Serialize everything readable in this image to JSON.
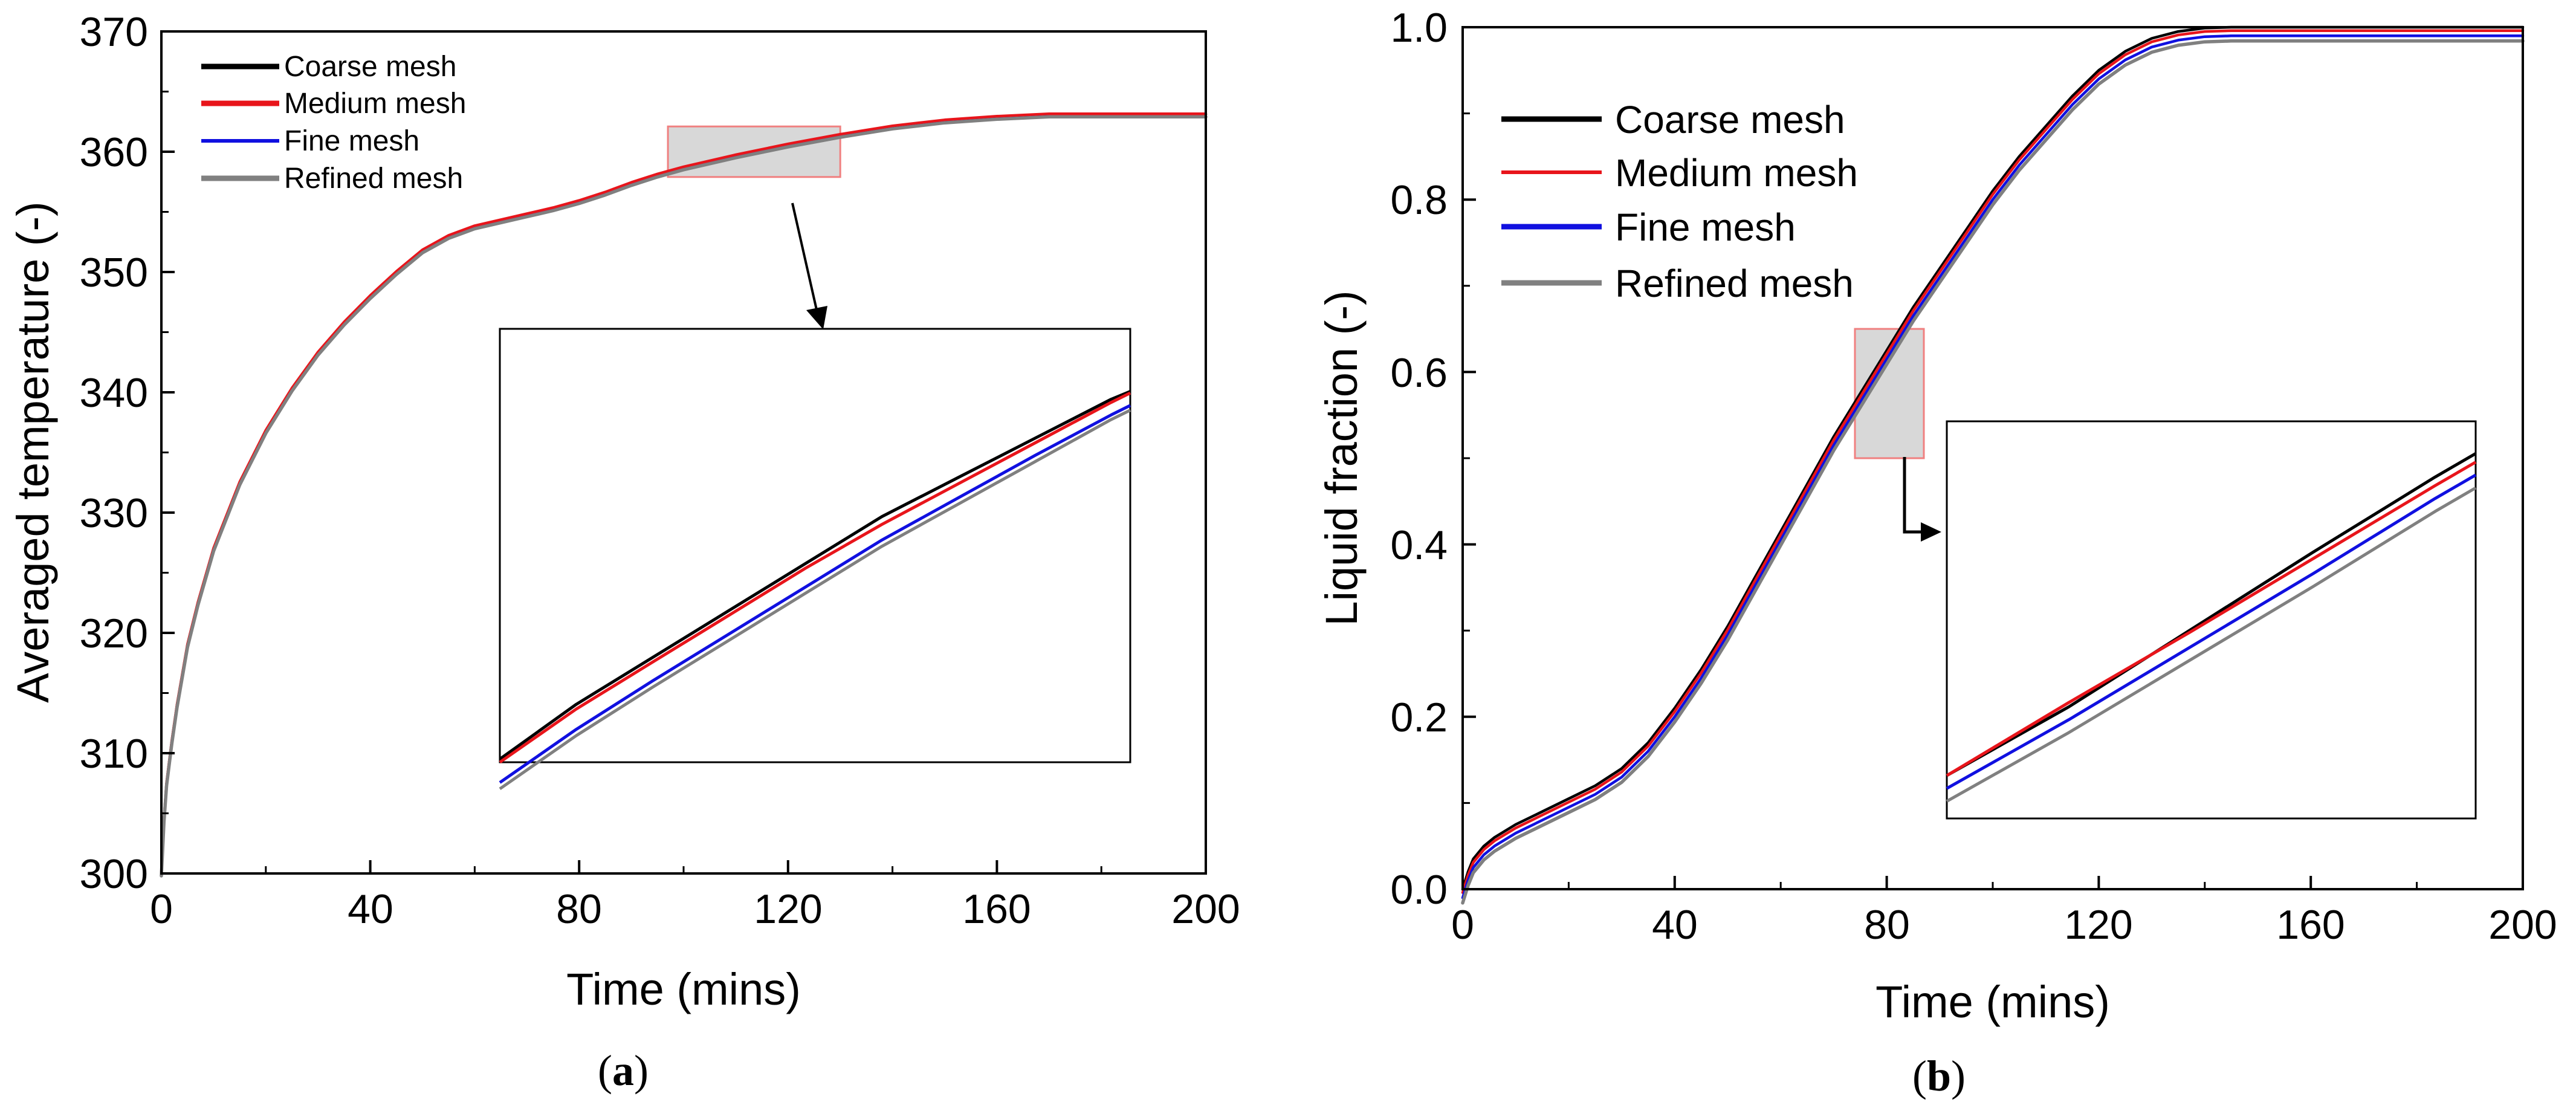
{
  "colors": {
    "coarse": "#000000",
    "medium": "#e8151b",
    "fine": "#1010e0",
    "refined": "#808080",
    "zoom_fill": "#d8d8d8",
    "zoom_border": "#f08080"
  },
  "chart_data": [
    {
      "type": "line",
      "panel_label": "a",
      "caption_open": "(",
      "caption_close": ")",
      "title": "",
      "xlabel": "Time (mins)",
      "ylabel": "Averaged temperature (-)",
      "xlim": [
        0,
        200
      ],
      "ylim": [
        300,
        370
      ],
      "xticks": [
        0,
        40,
        80,
        120,
        160,
        200
      ],
      "xtick_labels": [
        "0",
        "40",
        "80",
        "120",
        "160",
        "200"
      ],
      "yticks": [
        300,
        310,
        320,
        330,
        340,
        350,
        360,
        370
      ],
      "ytick_labels": [
        "300",
        "310",
        "320",
        "330",
        "340",
        "350",
        "360",
        "370"
      ],
      "grid": false,
      "legend_position": "top-left",
      "x": [
        0,
        0.5,
        1,
        2,
        3,
        5,
        7,
        10,
        15,
        20,
        25,
        30,
        35,
        40,
        45,
        50,
        55,
        60,
        65,
        70,
        75,
        80,
        85,
        90,
        95,
        100,
        110,
        120,
        130,
        140,
        150,
        160,
        170,
        180,
        190,
        200
      ],
      "series": [
        {
          "name": "Coarse mesh",
          "color_key": "coarse",
          "offset": 0.0,
          "values": [
            300,
            304.5,
            307.5,
            311,
            314,
            319,
            322.5,
            327,
            332.5,
            336.8,
            340.3,
            343.3,
            345.8,
            348,
            350,
            351.8,
            353,
            353.8,
            354.3,
            354.8,
            355.3,
            355.9,
            356.6,
            357.4,
            358.1,
            358.7,
            359.7,
            360.6,
            361.4,
            362.1,
            362.6,
            362.9,
            363.1,
            363.1,
            363.1,
            363.1
          ]
        },
        {
          "name": "Medium mesh",
          "color_key": "medium",
          "offset": 0.05,
          "values": [
            300,
            304.5,
            307.5,
            311,
            314,
            319,
            322.5,
            327,
            332.5,
            336.8,
            340.3,
            343.3,
            345.8,
            348,
            350,
            351.8,
            353,
            353.8,
            354.3,
            354.8,
            355.3,
            355.9,
            356.6,
            357.4,
            358.1,
            358.7,
            359.7,
            360.6,
            361.4,
            362.1,
            362.6,
            362.9,
            363.1,
            363.1,
            363.1,
            363.1
          ]
        },
        {
          "name": "Fine mesh",
          "color_key": "fine",
          "offset": -0.15,
          "values": [
            300,
            304.5,
            307.5,
            311,
            314,
            319,
            322.5,
            327,
            332.5,
            336.8,
            340.3,
            343.3,
            345.8,
            348,
            350,
            351.8,
            353,
            353.8,
            354.3,
            354.8,
            355.3,
            355.9,
            356.6,
            357.4,
            358.1,
            358.7,
            359.7,
            360.6,
            361.4,
            362.1,
            362.6,
            362.9,
            363.1,
            363.1,
            363.1,
            363.1
          ]
        },
        {
          "name": "Refined mesh",
          "color_key": "refined",
          "offset": -0.2,
          "values": [
            300,
            304.5,
            307.5,
            311,
            314,
            319,
            322.5,
            327,
            332.5,
            336.8,
            340.3,
            343.3,
            345.8,
            348,
            350,
            351.8,
            353,
            353.8,
            354.3,
            354.8,
            355.3,
            355.9,
            356.6,
            357.4,
            358.1,
            358.7,
            359.7,
            360.6,
            361.4,
            362.1,
            362.6,
            362.9,
            363.1,
            363.1,
            363.1,
            363.1
          ]
        }
      ],
      "zoom_region": {
        "x_range": [
          97,
          130
        ],
        "y_range": [
          357.9,
          362.1
        ]
      },
      "inset": {
        "x_range": [
          97,
          130
        ],
        "y_range": [
          358.13,
          360.9
        ],
        "x": [
          97,
          101,
          105,
          109,
          113,
          117,
          121,
          125,
          129,
          130
        ],
        "series": [
          {
            "name": "Coarse mesh",
            "color_key": "coarse",
            "values": [
              358.15,
              358.5,
              358.8,
              359.1,
              359.4,
              359.7,
              359.95,
              360.2,
              360.45,
              360.5
            ]
          },
          {
            "name": "Medium mesh",
            "color_key": "medium",
            "values": [
              358.13,
              358.47,
              358.77,
              359.07,
              359.37,
              359.65,
              359.91,
              360.17,
              360.43,
              360.49
            ]
          },
          {
            "name": "Fine mesh",
            "color_key": "fine",
            "values": [
              358.0,
              358.34,
              358.65,
              358.95,
              359.25,
              359.55,
              359.82,
              360.09,
              360.35,
              360.41
            ]
          },
          {
            "name": "Refined mesh",
            "color_key": "refined",
            "values": [
              357.96,
              358.3,
              358.61,
              358.91,
              359.21,
              359.51,
              359.78,
              360.05,
              360.32,
              360.38
            ]
          }
        ]
      }
    },
    {
      "type": "line",
      "panel_label": "b",
      "caption_open": "(",
      "caption_close": ")",
      "title": "",
      "xlabel": "Time (mins)",
      "ylabel": "Liquid fraction (-)",
      "xlim": [
        0,
        200
      ],
      "ylim": [
        0,
        1.0
      ],
      "xticks": [
        0,
        40,
        80,
        120,
        160,
        200
      ],
      "xtick_labels": [
        "0",
        "40",
        "80",
        "120",
        "160",
        "200"
      ],
      "yticks": [
        0,
        0.2,
        0.4,
        0.6,
        0.8,
        1.0
      ],
      "ytick_labels": [
        "0.0",
        "0.2",
        "0.4",
        "0.6",
        "0.8",
        "1.0"
      ],
      "grid": false,
      "legend_position": "top-left",
      "x": [
        0,
        1,
        2,
        4,
        6,
        10,
        15,
        20,
        25,
        30,
        35,
        40,
        45,
        50,
        55,
        60,
        65,
        70,
        75,
        80,
        85,
        90,
        95,
        100,
        105,
        110,
        115,
        120,
        125,
        130,
        135,
        140,
        145,
        150,
        155,
        160,
        170,
        180,
        190,
        200
      ],
      "series": [
        {
          "name": "Coarse mesh",
          "color_key": "coarse",
          "offset": 0.0,
          "values": [
            0,
            0.02,
            0.035,
            0.05,
            0.06,
            0.075,
            0.09,
            0.105,
            0.12,
            0.14,
            0.17,
            0.21,
            0.255,
            0.305,
            0.36,
            0.415,
            0.47,
            0.525,
            0.575,
            0.625,
            0.675,
            0.72,
            0.765,
            0.81,
            0.85,
            0.885,
            0.92,
            0.95,
            0.972,
            0.987,
            0.995,
            0.999,
            1.0,
            1.0,
            1.0,
            1.0,
            1.0,
            1.0,
            1.0,
            1.0
          ]
        },
        {
          "name": "Medium mesh",
          "color_key": "medium",
          "offset": -0.004,
          "values": [
            0,
            0.02,
            0.035,
            0.05,
            0.06,
            0.075,
            0.09,
            0.105,
            0.12,
            0.14,
            0.17,
            0.21,
            0.255,
            0.305,
            0.36,
            0.415,
            0.47,
            0.525,
            0.575,
            0.625,
            0.675,
            0.72,
            0.765,
            0.81,
            0.85,
            0.885,
            0.92,
            0.95,
            0.972,
            0.987,
            0.995,
            0.999,
            1.0,
            1.0,
            1.0,
            1.0,
            1.0,
            1.0,
            1.0,
            1.0
          ]
        },
        {
          "name": "Fine mesh",
          "color_key": "fine",
          "offset": -0.01,
          "values": [
            0,
            0.02,
            0.035,
            0.05,
            0.06,
            0.075,
            0.09,
            0.105,
            0.12,
            0.14,
            0.17,
            0.21,
            0.255,
            0.305,
            0.36,
            0.415,
            0.47,
            0.525,
            0.575,
            0.625,
            0.675,
            0.72,
            0.765,
            0.81,
            0.85,
            0.885,
            0.92,
            0.95,
            0.972,
            0.987,
            0.995,
            0.999,
            1.0,
            1.0,
            1.0,
            1.0,
            1.0,
            1.0,
            1.0,
            1.0
          ]
        },
        {
          "name": "Refined mesh",
          "color_key": "refined",
          "offset": -0.016,
          "values": [
            0,
            0.02,
            0.035,
            0.05,
            0.06,
            0.075,
            0.09,
            0.105,
            0.12,
            0.14,
            0.17,
            0.21,
            0.255,
            0.305,
            0.36,
            0.415,
            0.47,
            0.525,
            0.575,
            0.625,
            0.675,
            0.72,
            0.765,
            0.81,
            0.85,
            0.885,
            0.92,
            0.95,
            0.972,
            0.987,
            0.995,
            0.999,
            1.0,
            1.0,
            1.0,
            1.0,
            1.0,
            1.0,
            1.0,
            1.0
          ]
        }
      ],
      "zoom_region": {
        "x_range": [
          74,
          87
        ],
        "y_range": [
          0.5,
          0.65
        ]
      },
      "inset": {
        "x_range": [
          74,
          87
        ],
        "y_range": [
          0.496,
          0.681
        ],
        "x": [
          74,
          77,
          80,
          83,
          86,
          87
        ],
        "series": [
          {
            "name": "Coarse mesh",
            "color_key": "coarse",
            "values": [
              0.516,
              0.548,
              0.584,
              0.62,
              0.655,
              0.666
            ]
          },
          {
            "name": "Medium mesh",
            "color_key": "medium",
            "values": [
              0.516,
              0.55,
              0.583,
              0.617,
              0.651,
              0.662
            ]
          },
          {
            "name": "Fine mesh",
            "color_key": "fine",
            "values": [
              0.51,
              0.542,
              0.576,
              0.61,
              0.645,
              0.656
            ]
          },
          {
            "name": "Refined mesh",
            "color_key": "refined",
            "values": [
              0.504,
              0.536,
              0.57,
              0.604,
              0.639,
              0.65
            ]
          }
        ]
      }
    }
  ]
}
